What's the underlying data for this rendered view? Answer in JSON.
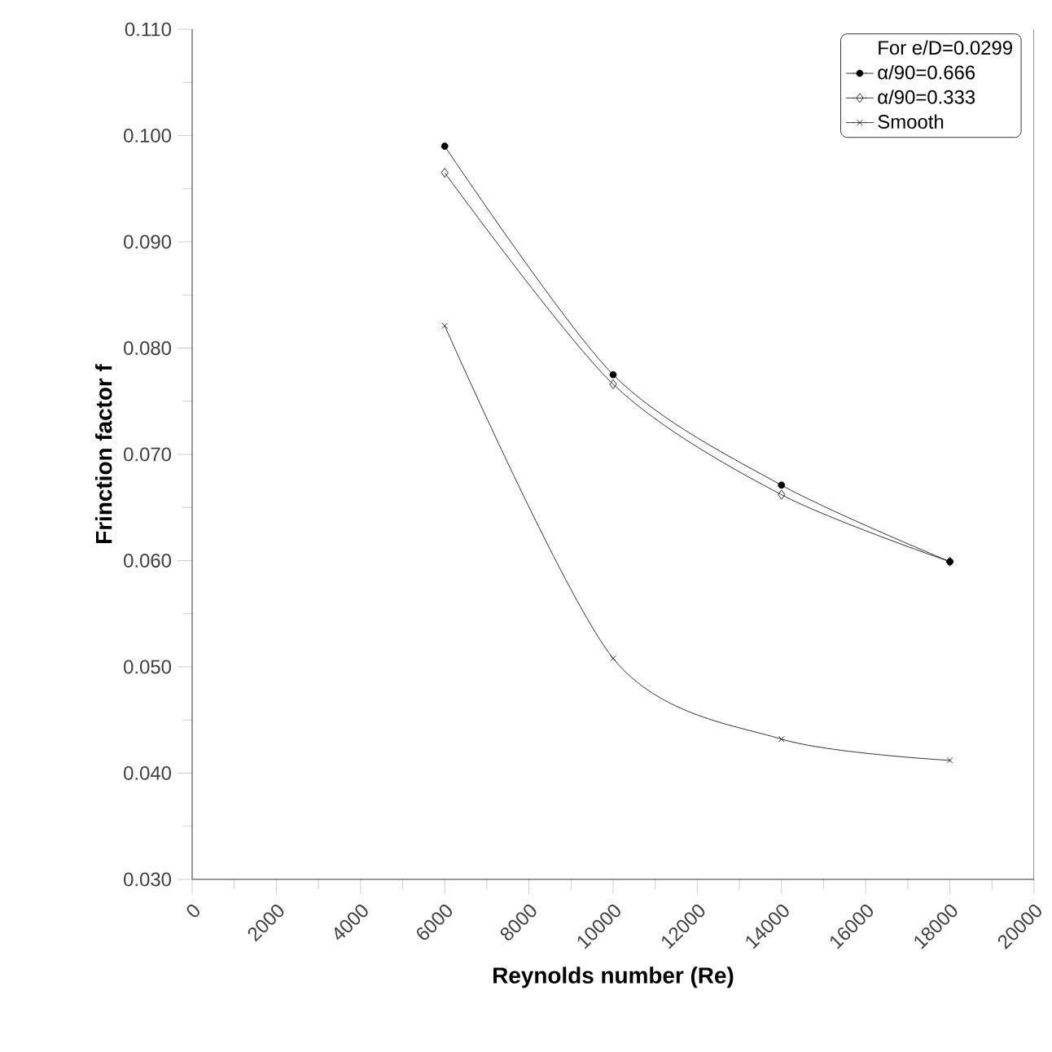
{
  "chart_data": {
    "type": "line",
    "xlabel": "Reynolds number (Re)",
    "ylabel": "Frinction factor f",
    "legend_title": "For e/D=0.0299",
    "legend": "top right",
    "line_style": "solid",
    "x": [
      6000,
      10000,
      14000,
      18000
    ],
    "series": [
      {
        "name": "α/90=0.666",
        "color": "#000000",
        "marker": "circle",
        "values": [
          0.099,
          0.0775,
          0.0671,
          0.0599
        ]
      },
      {
        "name": "α/90=0.333",
        "color": "#000000",
        "marker": "diamond",
        "values": [
          0.0965,
          0.0766,
          0.0662,
          0.0599
        ]
      },
      {
        "name": "Smooth",
        "color": "#000000",
        "marker": "cross",
        "values": [
          0.0821,
          0.0508,
          0.0432,
          0.0412
        ]
      }
    ],
    "xlim": [
      0,
      20000
    ],
    "xticks": [
      0,
      2000,
      4000,
      6000,
      8000,
      10000,
      12000,
      14000,
      16000,
      18000,
      20000
    ],
    "ylim": [
      0.03,
      0.11
    ],
    "yticks": [
      {
        "value": 0.03,
        "label": "0.030"
      },
      {
        "value": 0.04,
        "label": "0.040"
      },
      {
        "value": 0.05,
        "label": "0.050"
      },
      {
        "value": 0.06,
        "label": "0.060"
      },
      {
        "value": 0.07,
        "label": "0.070"
      },
      {
        "value": 0.08,
        "label": "0.080"
      },
      {
        "value": 0.09,
        "label": "0.090"
      },
      {
        "value": 0.1,
        "label": "0.100"
      },
      {
        "value": 0.11,
        "label": "0.110"
      }
    ],
    "grid": false
  }
}
